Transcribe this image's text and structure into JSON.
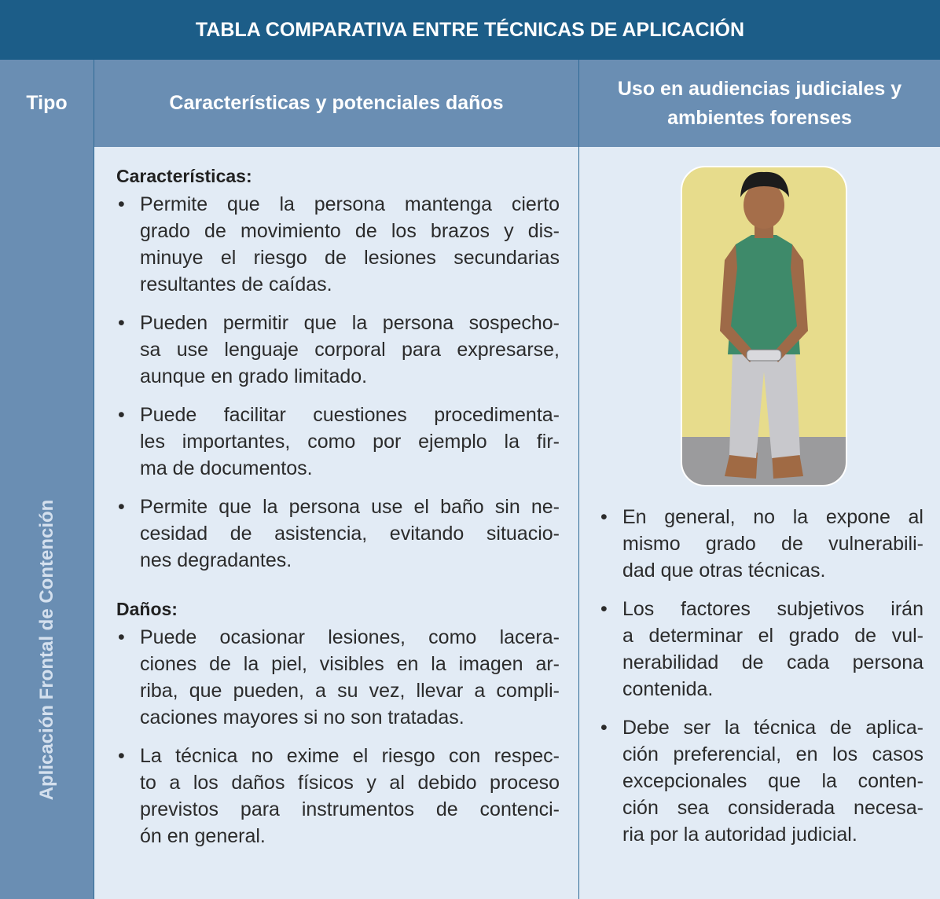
{
  "table": {
    "title": "TABLA COMPARATIVA ENTRE TÉCNICAS DE APLICACIÓN",
    "header": [
      "Tipo",
      "Características y potenciales daños",
      "Uso en audiencias judiciales y ambientes forenses"
    ],
    "row": {
      "tipo": "Aplicación Frontal de Contención",
      "caracteristicas_heading": "Características:",
      "caracteristicas": [
        [
          "Permite que la persona mantenga cierto",
          "grado de movimiento de los brazos y dis-",
          "minuye el riesgo de lesiones secundarias",
          "resultantes de caídas."
        ],
        [
          "Pueden permitir que la persona sospecho-",
          "sa use lenguaje corporal para expresarse,",
          "aunque en grado limitado."
        ],
        [
          "Puede facilitar cuestiones procedimenta-",
          "les importantes, como por ejemplo la fir-",
          "ma de documentos."
        ],
        [
          "Permite que la persona use el baño sin ne-",
          "cesidad de asistencia, evitando situacio-",
          "nes degradantes."
        ]
      ],
      "danos_heading": "Daños:",
      "danos": [
        [
          "Puede ocasionar lesiones, como lacera-",
          "ciones de la piel, visibles en la imagen ar-",
          "riba, que pueden, a su vez, llevar a compli-",
          "caciones mayores si no son tratadas."
        ],
        [
          "La técnica no exime el riesgo con respec-",
          "to a los daños físicos y al debido proceso",
          "previstos para instrumentos de contenci-",
          "ón en general."
        ]
      ],
      "uso": [
        [
          "En general, no la expone al",
          "mismo grado de vulnerabili-",
          "dad que otras técnicas."
        ],
        [
          "Los factores subjetivos irán",
          "a determinar el grado de vul-",
          "nerabilidad de cada persona",
          "contenida."
        ],
        [
          "Debe ser la técnica de aplica-",
          "ción preferencial, en los casos",
          "excepcionales que la conten-",
          "ción sea considerada necesa-",
          "ria por la autoridad judicial."
        ]
      ]
    }
  }
}
